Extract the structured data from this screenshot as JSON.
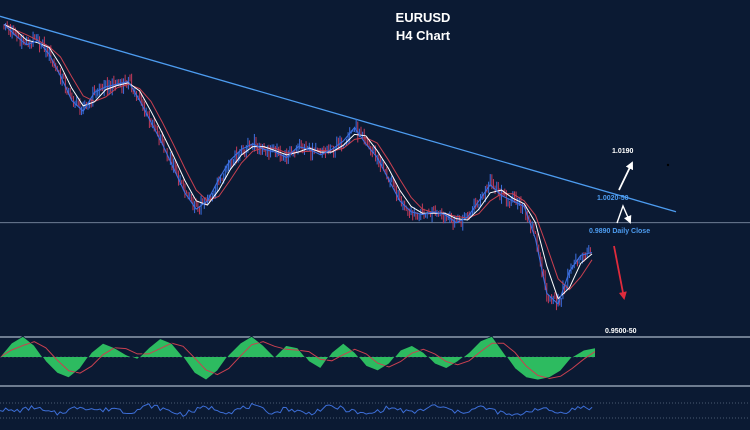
{
  "chart_data": {
    "type": "line",
    "title": "EURUSD",
    "subtitle": "H4 Chart",
    "series": [
      {
        "values": [
          1.029,
          1.025,
          1.0215,
          1.023,
          1.018,
          1.01,
          1.001,
          0.997,
          1.004,
          1.006,
          1.007,
          1.008,
          1.001,
          0.993,
          0.985,
          0.976,
          0.967,
          0.961,
          0.964,
          0.972,
          0.979,
          0.983,
          0.985,
          0.983,
          0.982,
          0.98,
          0.984,
          0.983,
          0.981,
          0.983,
          0.986,
          0.991,
          0.985,
          0.98,
          0.972,
          0.964,
          0.96,
          0.959,
          0.96,
          0.959,
          0.956,
          0.958,
          0.964,
          0.97,
          0.966,
          0.964,
          0.962,
          0.95,
          0.93,
          0.926,
          0.938,
          0.944,
          0.945
        ]
      }
    ],
    "trendline": {
      "start": 1.032,
      "end": 0.96
    },
    "horizontal_line": 0.956,
    "levels": {
      "target_up": "1.0190",
      "resistance": "1.0020-50",
      "daily_close": "0.9890 Daily Close",
      "target_down": "0.9500-50"
    },
    "ylim": [
      0.915,
      1.038
    ],
    "oscillator": {
      "values": [
        0,
        0.6,
        0.9,
        0.5,
        -0.2,
        -0.7,
        -0.9,
        -0.5,
        0.2,
        0.6,
        0.4,
        0.1,
        -0.1,
        0.4,
        0.8,
        0.6,
        0,
        -0.7,
        -1.0,
        -0.6,
        0.1,
        0.6,
        0.9,
        0.5,
        0,
        0.5,
        0.4,
        -0.2,
        -0.5,
        0.2,
        0.6,
        0.2,
        -0.4,
        -0.6,
        -0.3,
        0.3,
        0.5,
        0.2,
        -0.3,
        -0.5,
        -0.2,
        0.2,
        0.7,
        0.9,
        0.2,
        -0.5,
        -0.9,
        -1.0,
        -0.9,
        -0.6,
        0.0,
        0.3,
        0.4
      ]
    },
    "rsi": {
      "values": [
        52,
        48,
        50,
        55,
        47,
        44,
        50,
        56,
        52,
        49,
        54,
        46,
        50,
        58,
        53,
        47,
        43,
        49,
        55,
        51,
        46,
        52,
        57,
        50,
        45,
        53,
        48,
        44,
        51,
        56,
        52,
        47,
        42,
        48,
        54,
        50,
        45,
        51,
        57,
        52,
        46,
        49,
        55,
        50,
        44,
        40,
        47,
        53,
        49,
        45,
        51,
        55,
        52
      ]
    },
    "colors": {
      "background": "#0b1a33",
      "trendline": "#4d9cf0",
      "price": "#3c6fe0",
      "candle_down": "#c23a5a",
      "ma_fast": "#ffffff",
      "ma_slow": "#c94050",
      "oscillator_fill": "#2fc463",
      "rsi": "#3d6fd8",
      "level_blue": "#4d9cf0",
      "arrow_up": "#ffffff",
      "arrow_down": "#e02b3c"
    }
  }
}
